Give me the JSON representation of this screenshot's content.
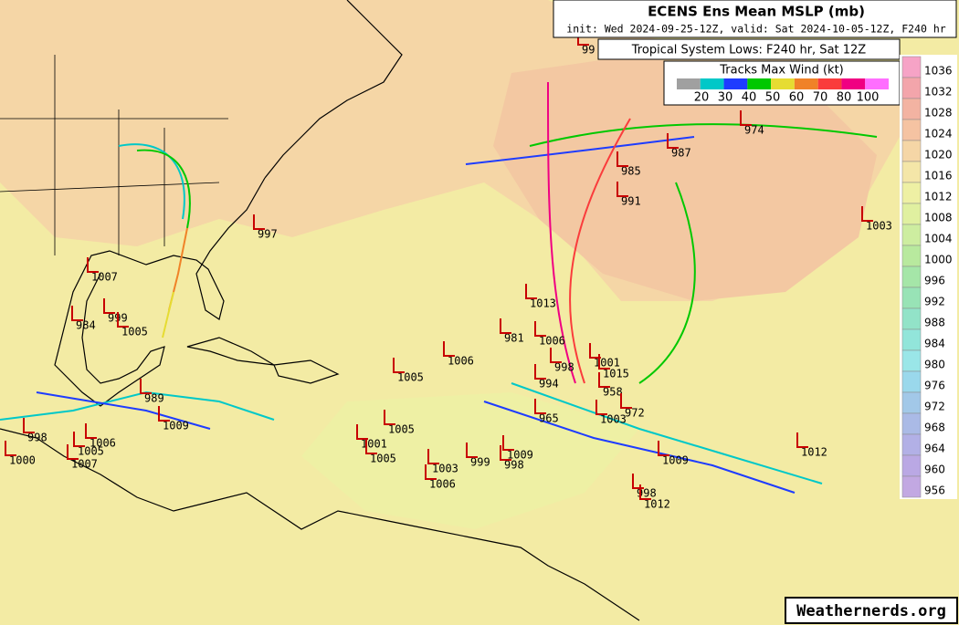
{
  "header": {
    "title": "ECENS Ens Mean MSLP (mb)",
    "subtitle": "init: Wed 2024-09-25-12Z, valid: Sat 2024-10-05-12Z, F240 hr"
  },
  "lows_panel": {
    "title": "Tropical System Lows: F240 hr, Sat 12Z"
  },
  "wind_legend": {
    "title": "Tracks Max Wind (kt)",
    "colors": [
      "#a0a0a0",
      "#00c8c8",
      "#1e3cff",
      "#00c800",
      "#e6dc32",
      "#f08228",
      "#fa3c3c",
      "#f00082",
      "#ff6eff"
    ],
    "labels": [
      "20",
      "30",
      "40",
      "50",
      "60",
      "70",
      "80",
      "100"
    ]
  },
  "pressure_scale": {
    "levels": [
      1036,
      1032,
      1028,
      1024,
      1020,
      1016,
      1012,
      1008,
      1004,
      1000,
      996,
      992,
      988,
      984,
      980,
      976,
      972,
      968,
      964,
      960,
      956
    ],
    "colors": [
      "#f6a3c6",
      "#f3a5ab",
      "#f3b3a2",
      "#f5c3a2",
      "#f5d6a6",
      "#f4e6a8",
      "#eef0a4",
      "#e0f0a0",
      "#cdeda0",
      "#b8e99e",
      "#a5e6a8",
      "#98e3b6",
      "#92e3c8",
      "#92e5da",
      "#9ae6e8",
      "#9ad8ec",
      "#a2c8e8",
      "#aabae6",
      "#b2b0e6",
      "#baa8e4",
      "#c2a8e2"
    ]
  },
  "lows": [
    "997",
    "1007",
    "984",
    "999",
    "1005",
    "989",
    "1009",
    "998",
    "1000",
    "1005",
    "1006",
    "1007",
    "1005",
    "1006",
    "1013",
    "981",
    "1006",
    "998",
    "994",
    "1001",
    "1015",
    "958",
    "1003",
    "972",
    "965",
    "1009",
    "998",
    "999",
    "1003",
    "1006",
    "1005",
    "1009",
    "998",
    "1012",
    "1012",
    "1003",
    "974",
    "987",
    "985",
    "991",
    "1005",
    "1001",
    "99"
  ],
  "watermark": "Weathernerds.org"
}
